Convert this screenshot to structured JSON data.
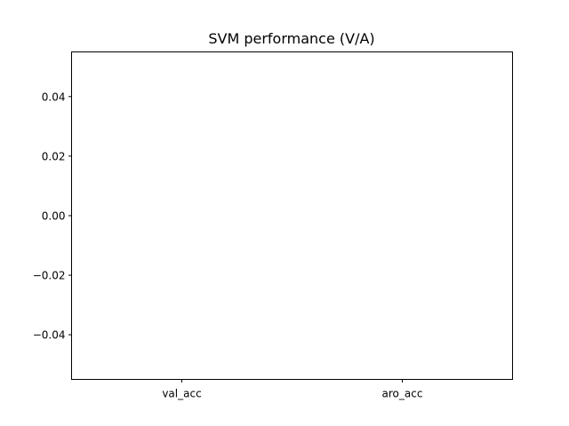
{
  "chart_data": {
    "type": "bar",
    "title": "SVM performance (V/A)",
    "xlabel": "",
    "ylabel": "",
    "categories": [
      "val_acc",
      "aro_acc"
    ],
    "values": [
      0,
      0
    ],
    "ylim": [
      -0.055,
      0.055
    ],
    "yticks": [
      -0.04,
      -0.02,
      0.0,
      0.02,
      0.04
    ],
    "ytick_labels": [
      "−0.04",
      "−0.02",
      "0.00",
      "0.02",
      "0.04"
    ],
    "grid": false,
    "legend": "none",
    "colors": {
      "axis": "#000000",
      "background": "#ffffff",
      "bar": "#1f77b4"
    }
  }
}
